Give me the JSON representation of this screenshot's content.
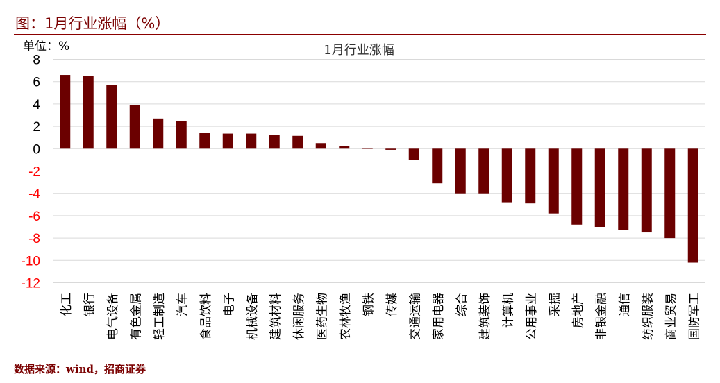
{
  "header": {
    "figure_title": "图：1月行业涨幅（%）",
    "unit_label": "单位：%"
  },
  "footer": {
    "source": "数据来源：wind，招商证券"
  },
  "colors": {
    "bar": "#6b0000",
    "title": "#7a0000",
    "negative_tick": "#ff0000",
    "positive_tick": "#000000",
    "grid": "#d9d9d9"
  },
  "chart_data": {
    "type": "bar",
    "title": "1月行业涨幅",
    "xlabel": "",
    "ylabel": "",
    "ylim": [
      -12,
      8
    ],
    "yticks": [
      8,
      6,
      4,
      2,
      0,
      -2,
      -4,
      -6,
      -8,
      -10,
      -12
    ],
    "grid": true,
    "categories": [
      "化工",
      "银行",
      "电气设备",
      "有色金属",
      "轻工制造",
      "汽车",
      "食品饮料",
      "电子",
      "机械设备",
      "建筑材料",
      "休闲服务",
      "医药生物",
      "农林牧渔",
      "钢铁",
      "传媒",
      "交通运输",
      "家用电器",
      "综合",
      "建筑装饰",
      "计算机",
      "公用事业",
      "采掘",
      "房地产",
      "非银金融",
      "通信",
      "纺织服装",
      "商业贸易",
      "国防军工"
    ],
    "values": [
      6.6,
      6.5,
      5.7,
      3.9,
      2.7,
      2.5,
      1.4,
      1.35,
      1.35,
      1.2,
      1.15,
      0.5,
      0.25,
      0.05,
      -0.1,
      -1.0,
      -3.1,
      -4.0,
      -4.0,
      -4.8,
      -4.9,
      -5.8,
      -6.8,
      -7.0,
      -7.3,
      -7.5,
      -8.0,
      -10.2
    ]
  }
}
